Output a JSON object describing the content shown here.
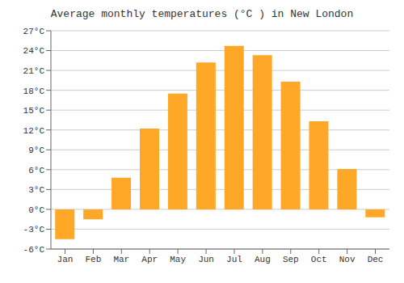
{
  "chart_data": {
    "type": "bar",
    "title": "Average monthly temperatures (°C ) in New London",
    "categories": [
      "Jan",
      "Feb",
      "Mar",
      "Apr",
      "May",
      "Jun",
      "Jul",
      "Aug",
      "Sep",
      "Oct",
      "Nov",
      "Dec"
    ],
    "values": [
      -4.5,
      -1.5,
      4.8,
      12.2,
      17.5,
      22.2,
      24.7,
      23.3,
      19.3,
      13.3,
      6.1,
      -1.2
    ],
    "color": "#FFA726",
    "ylim": [
      -6,
      27
    ],
    "yticks": [
      {
        "value": -6,
        "label": "-6°C"
      },
      {
        "value": -3,
        "label": "-3°C"
      },
      {
        "value": 0,
        "label": "0°C"
      },
      {
        "value": 3,
        "label": "3°C"
      },
      {
        "value": 6,
        "label": "6°C"
      },
      {
        "value": 9,
        "label": "9°C"
      },
      {
        "value": 12,
        "label": "12°C"
      },
      {
        "value": 15,
        "label": "15°C"
      },
      {
        "value": 18,
        "label": "18°C"
      },
      {
        "value": 21,
        "label": "21°C"
      },
      {
        "value": 24,
        "label": "24°C"
      },
      {
        "value": 27,
        "label": "27°C"
      }
    ],
    "grid": true
  }
}
